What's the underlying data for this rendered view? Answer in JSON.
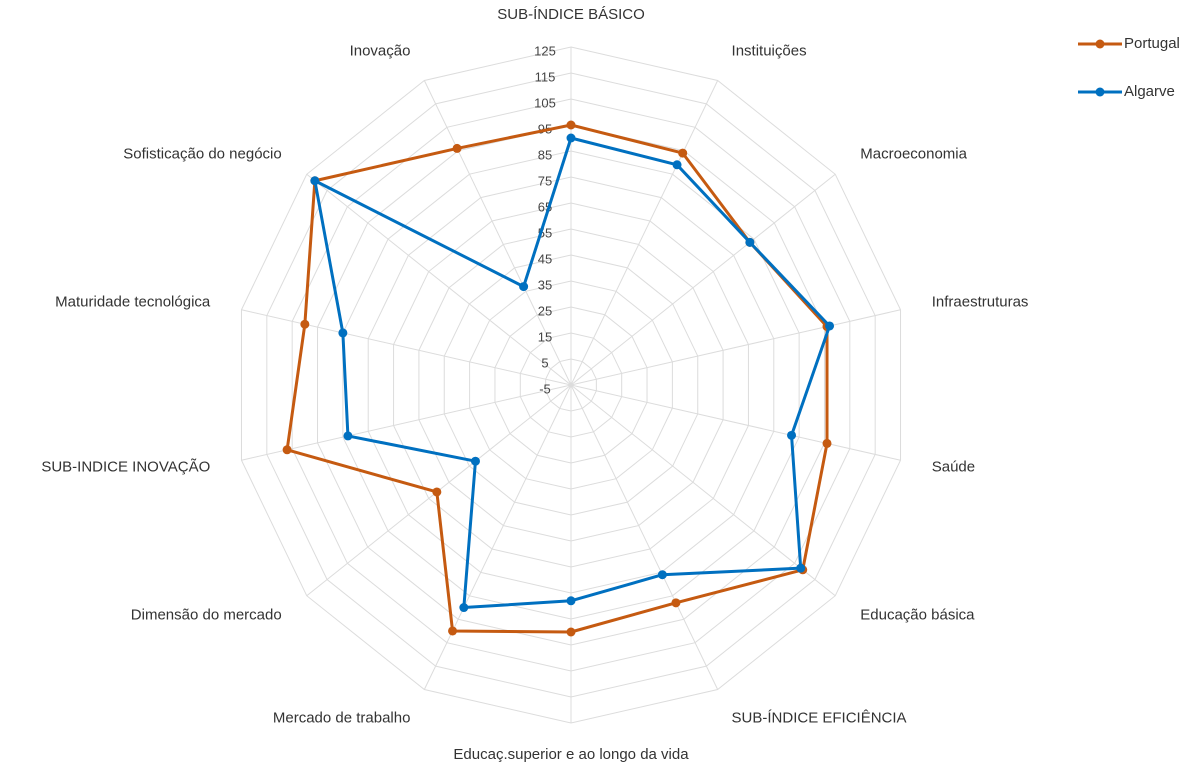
{
  "chart_data": {
    "type": "radar",
    "categories": [
      "SUB-ÍNDICE BÁSICO",
      "Instituições",
      "Macroeconomia",
      "Infraestruturas",
      "Saúde",
      "Educação básica",
      "SUB-ÍNDICE EFICIÊNCIA",
      "Educaç.superior e ao longo da vida",
      "Mercado de trabalho",
      "Dimensão do mercado",
      "SUB-INDICE INOVAÇÃO",
      "Maturidade tecnológica",
      "Sofisticação do negócio",
      "Inovação"
    ],
    "series": [
      {
        "name": "Portugal",
        "color": "#c55a11",
        "values": [
          95,
          94,
          83,
          96,
          96,
          109,
          88,
          90,
          100,
          61,
          107,
          100,
          121,
          96
        ]
      },
      {
        "name": "Algarve",
        "color": "#0070c0",
        "values": [
          90,
          89,
          83,
          97,
          82,
          108,
          76,
          78,
          90,
          42,
          83,
          85,
          121,
          37
        ]
      }
    ],
    "ylim": [
      -5,
      125
    ],
    "yticks": [
      -5,
      5,
      15,
      25,
      35,
      45,
      55,
      65,
      75,
      85,
      95,
      105,
      115,
      125
    ],
    "grid": true,
    "legend": "top-right"
  }
}
